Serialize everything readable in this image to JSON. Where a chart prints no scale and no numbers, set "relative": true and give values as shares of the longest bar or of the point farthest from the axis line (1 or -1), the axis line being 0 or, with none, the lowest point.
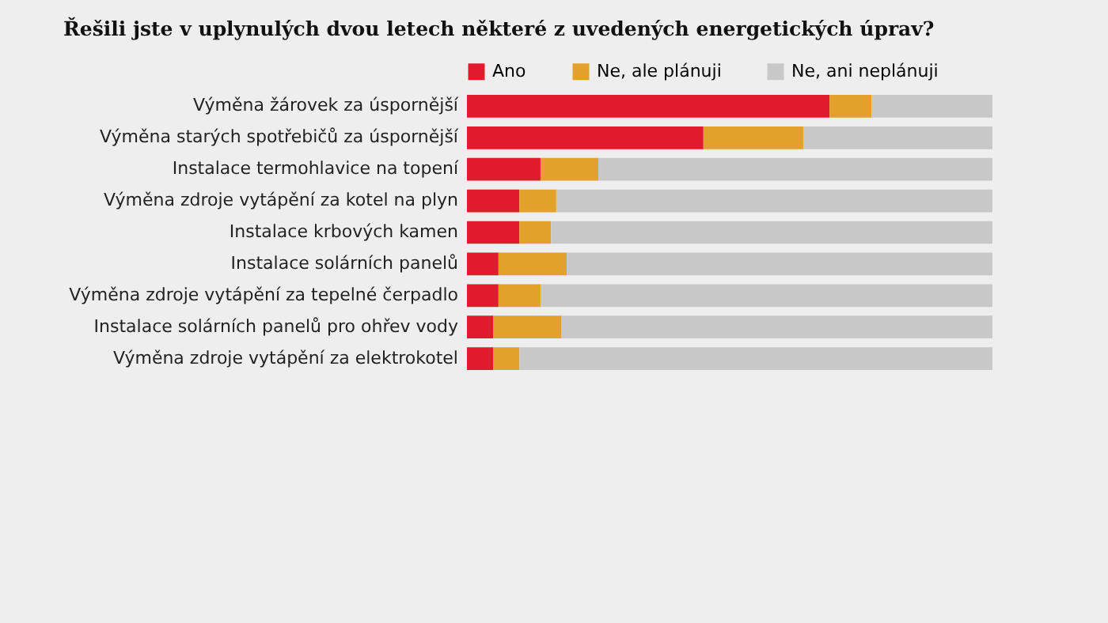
{
  "chart_data": {
    "type": "bar",
    "title": "Řešili jste v uplynulých dvou letech některé z uvedených energetických úprav?",
    "orientation": "horizontal",
    "stacked": true,
    "relative": true,
    "legend": "top",
    "categories": [
      "Výměna žárovek za úspornější",
      "Výměna starých spotřebičů za úspornější",
      "Instalace termohlavice na topení",
      "Výměna zdroje vytápění za kotel na plyn",
      "Instalace krbových kamen",
      "Instalace solárních panelů",
      "Výměna zdroje vytápění za tepelné čerpadlo",
      "Instalace solárních panelů pro ohřev vody",
      "Výměna zdroje vytápění za elektrokotel"
    ],
    "series": [
      {
        "name": "Ano",
        "color": "#e01b2b",
        "values": [
          0.69,
          0.45,
          0.14,
          0.1,
          0.1,
          0.06,
          0.06,
          0.05,
          0.05
        ]
      },
      {
        "name": "Ne, ale plánuji",
        "color": "#e3a12b",
        "values": [
          0.08,
          0.19,
          0.11,
          0.07,
          0.06,
          0.13,
          0.08,
          0.13,
          0.05
        ]
      },
      {
        "name": "Ne, ani neplánuji",
        "color": "#c8c8c8",
        "values": [
          0.23,
          0.36,
          0.75,
          0.83,
          0.84,
          0.81,
          0.86,
          0.82,
          0.9
        ]
      }
    ]
  }
}
